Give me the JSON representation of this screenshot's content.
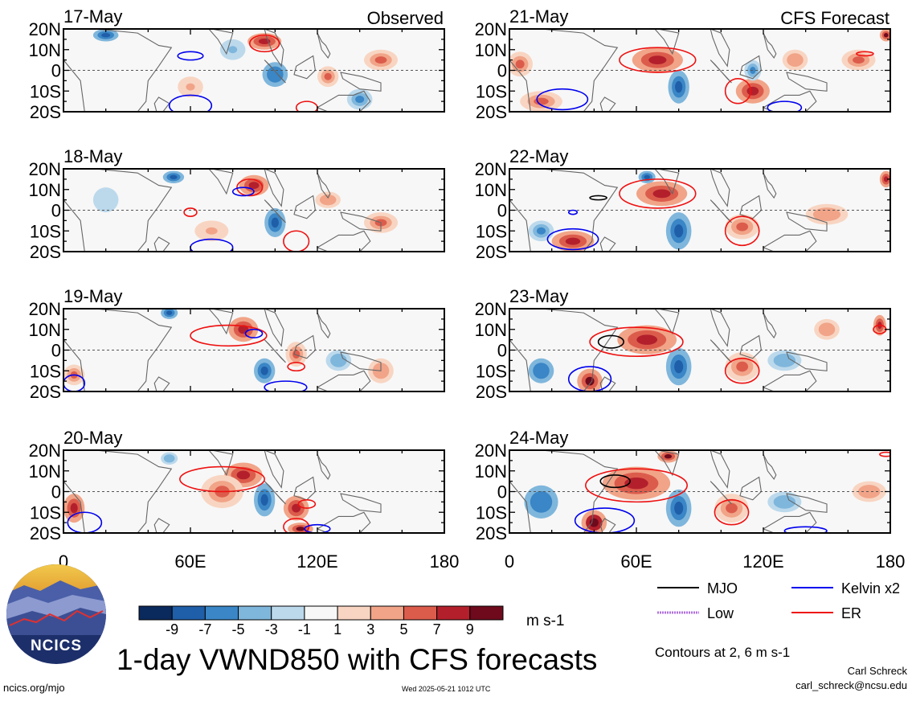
{
  "chart_data": {
    "type": "heatmap",
    "variable": "1-day VWND850 with CFS forecasts",
    "xlim": [
      0,
      180
    ],
    "ylim": [
      -20,
      20
    ],
    "x_ticks": [
      "0",
      "60E",
      "120E",
      "180"
    ],
    "y_ticks": [
      "20N",
      "10N",
      "0",
      "10S",
      "20S"
    ],
    "colorbar": {
      "labels": [
        "-9",
        "-7",
        "-5",
        "-3",
        "-1",
        "1",
        "3",
        "5",
        "7",
        "9"
      ],
      "colors": [
        "#0a2a5e",
        "#1f5ea8",
        "#3a86c6",
        "#7fb6dc",
        "#bcd9ec",
        "#f7f7f7",
        "#f8d5c2",
        "#f1a488",
        "#dc5c4c",
        "#b3202c",
        "#6e0a1c"
      ],
      "units": "m s-1"
    },
    "panels": [
      {
        "date": "17-May",
        "column": "left",
        "row": 0,
        "header_right": "Observed",
        "blobs": [
          [
            95,
            14,
            8,
            4,
            0.8
          ],
          [
            20,
            17,
            6,
            3,
            -0.9
          ],
          [
            100,
            -2,
            6,
            6,
            -0.7
          ],
          [
            125,
            -3,
            5,
            5,
            0.5
          ],
          [
            150,
            5,
            8,
            5,
            0.6
          ],
          [
            80,
            10,
            6,
            5,
            -0.4
          ],
          [
            60,
            -8,
            6,
            5,
            0.3
          ],
          [
            140,
            -14,
            6,
            5,
            -0.6
          ]
        ],
        "contours": [
          {
            "type": "ER",
            "x": 95,
            "y": 13,
            "rx": 7,
            "ry": 4
          },
          {
            "type": "Kelvin",
            "x": 60,
            "y": 7,
            "rx": 6,
            "ry": 2
          },
          {
            "type": "Kelvin",
            "x": 60,
            "y": -17,
            "rx": 10,
            "ry": 5
          },
          {
            "type": "ER",
            "x": 115,
            "y": -18,
            "rx": 5,
            "ry": 3
          }
        ]
      },
      {
        "date": "18-May",
        "column": "left",
        "row": 1,
        "header_right": "",
        "blobs": [
          [
            90,
            12,
            7,
            5,
            0.7
          ],
          [
            52,
            16,
            5,
            3,
            -0.8
          ],
          [
            100,
            -6,
            5,
            7,
            -0.8
          ],
          [
            125,
            5,
            6,
            4,
            0.4
          ],
          [
            150,
            -6,
            8,
            5,
            0.5
          ],
          [
            20,
            5,
            6,
            6,
            -0.3
          ],
          [
            70,
            -10,
            8,
            5,
            0.3
          ]
        ],
        "contours": [
          {
            "type": "ER",
            "x": 88,
            "y": 11,
            "rx": 6,
            "ry": 4
          },
          {
            "type": "Kelvin",
            "x": 85,
            "y": 9,
            "rx": 5,
            "ry": 2
          },
          {
            "type": "ER",
            "x": 60,
            "y": -1,
            "rx": 3,
            "ry": 2
          },
          {
            "type": "Kelvin",
            "x": 70,
            "y": -18,
            "rx": 10,
            "ry": 4
          },
          {
            "type": "ER",
            "x": 110,
            "y": -15,
            "rx": 6,
            "ry": 5
          }
        ]
      },
      {
        "date": "19-May",
        "column": "left",
        "row": 2,
        "header_right": "",
        "blobs": [
          [
            85,
            10,
            7,
            6,
            0.8
          ],
          [
            50,
            18,
            4,
            3,
            -0.8
          ],
          [
            95,
            -10,
            5,
            6,
            -0.8
          ],
          [
            110,
            -2,
            5,
            6,
            0.5
          ],
          [
            130,
            -5,
            6,
            5,
            -0.5
          ],
          [
            5,
            -12,
            5,
            5,
            0.6
          ],
          [
            150,
            -10,
            6,
            6,
            0.4
          ]
        ],
        "contours": [
          {
            "type": "ER",
            "x": 78,
            "y": 7,
            "rx": 18,
            "ry": 5
          },
          {
            "type": "Kelvin",
            "x": 90,
            "y": 8,
            "rx": 4,
            "ry": 2
          },
          {
            "type": "ER",
            "x": 110,
            "y": -8,
            "rx": 4,
            "ry": 2
          },
          {
            "type": "Kelvin",
            "x": 105,
            "y": -18,
            "rx": 10,
            "ry": 3
          },
          {
            "type": "Kelvin",
            "x": 5,
            "y": -16,
            "rx": 5,
            "ry": 4
          }
        ]
      },
      {
        "date": "20-May",
        "column": "left",
        "row": 3,
        "header_right": "",
        "blobs": [
          [
            85,
            8,
            9,
            6,
            0.8
          ],
          [
            95,
            -4,
            5,
            8,
            -0.9
          ],
          [
            110,
            -8,
            6,
            6,
            0.7
          ],
          [
            112,
            -18,
            6,
            3,
            0.9
          ],
          [
            5,
            -8,
            5,
            7,
            0.8
          ],
          [
            75,
            0,
            10,
            8,
            0.5
          ],
          [
            50,
            16,
            4,
            3,
            -0.5
          ]
        ],
        "contours": [
          {
            "type": "ER",
            "x": 75,
            "y": 6,
            "rx": 20,
            "ry": 6
          },
          {
            "type": "Kelvin",
            "x": 10,
            "y": -15,
            "rx": 8,
            "ry": 5
          },
          {
            "type": "ER",
            "x": 110,
            "y": -17,
            "rx": 6,
            "ry": 4
          },
          {
            "type": "Kelvin",
            "x": 120,
            "y": -18,
            "rx": 6,
            "ry": 2
          },
          {
            "type": "ER",
            "x": 115,
            "y": -6,
            "rx": 4,
            "ry": 2
          }
        ]
      },
      {
        "date": "21-May",
        "column": "right",
        "row": 0,
        "header_right": "CFS Forecast",
        "blobs": [
          [
            70,
            5,
            12,
            6,
            0.7
          ],
          [
            80,
            -8,
            5,
            8,
            -0.9
          ],
          [
            115,
            -10,
            8,
            6,
            0.7
          ],
          [
            115,
            0,
            4,
            5,
            -0.6
          ],
          [
            135,
            5,
            6,
            5,
            0.4
          ],
          [
            165,
            5,
            8,
            5,
            0.5
          ],
          [
            178,
            17,
            3,
            3,
            0.9
          ],
          [
            15,
            -15,
            10,
            5,
            0.6
          ],
          [
            5,
            3,
            6,
            6,
            0.5
          ]
        ],
        "contours": [
          {
            "type": "ER",
            "x": 70,
            "y": 5,
            "rx": 18,
            "ry": 6
          },
          {
            "type": "Kelvin",
            "x": 25,
            "y": -14,
            "rx": 12,
            "ry": 5
          },
          {
            "type": "ER",
            "x": 108,
            "y": -10,
            "rx": 6,
            "ry": 6
          },
          {
            "type": "Kelvin",
            "x": 130,
            "y": -18,
            "rx": 8,
            "ry": 3
          },
          {
            "type": "ER",
            "x": 168,
            "y": 8,
            "rx": 4,
            "ry": 1
          }
        ]
      },
      {
        "date": "22-May",
        "column": "right",
        "row": 1,
        "header_right": "",
        "blobs": [
          [
            72,
            8,
            12,
            6,
            0.8
          ],
          [
            80,
            -10,
            6,
            9,
            -0.9
          ],
          [
            110,
            -8,
            8,
            6,
            0.6
          ],
          [
            30,
            -15,
            10,
            5,
            0.7
          ],
          [
            15,
            -10,
            6,
            5,
            -0.6
          ],
          [
            65,
            16,
            4,
            3,
            -0.8
          ],
          [
            178,
            15,
            3,
            4,
            0.8
          ],
          [
            150,
            -2,
            10,
            5,
            0.4
          ]
        ],
        "contours": [
          {
            "type": "ER",
            "x": 70,
            "y": 8,
            "rx": 18,
            "ry": 7
          },
          {
            "type": "Kelvin",
            "x": 30,
            "y": -14,
            "rx": 12,
            "ry": 5
          },
          {
            "type": "ER",
            "x": 110,
            "y": -10,
            "rx": 8,
            "ry": 7
          },
          {
            "type": "MJO",
            "x": 42,
            "y": 6,
            "rx": 4,
            "ry": 1
          },
          {
            "type": "Kelvin",
            "x": 30,
            "y": -1,
            "rx": 2,
            "ry": 1
          }
        ]
      },
      {
        "date": "23-May",
        "column": "right",
        "row": 2,
        "header_right": "",
        "blobs": [
          [
            65,
            5,
            14,
            7,
            0.8
          ],
          [
            80,
            -8,
            6,
            9,
            -0.8
          ],
          [
            110,
            -8,
            8,
            7,
            0.6
          ],
          [
            38,
            -15,
            6,
            6,
            0.9
          ],
          [
            15,
            -10,
            6,
            6,
            -0.7
          ],
          [
            175,
            12,
            3,
            5,
            0.8
          ],
          [
            130,
            -5,
            8,
            5,
            -0.5
          ],
          [
            150,
            10,
            6,
            5,
            0.4
          ]
        ],
        "contours": [
          {
            "type": "ER",
            "x": 60,
            "y": 4,
            "rx": 22,
            "ry": 7
          },
          {
            "type": "MJO",
            "x": 48,
            "y": 4,
            "rx": 6,
            "ry": 3
          },
          {
            "type": "Kelvin",
            "x": 38,
            "y": -14,
            "rx": 10,
            "ry": 6
          },
          {
            "type": "ER",
            "x": 110,
            "y": -10,
            "rx": 8,
            "ry": 6
          },
          {
            "type": "ER",
            "x": 175,
            "y": 10,
            "rx": 3,
            "ry": 2
          }
        ]
      },
      {
        "date": "24-May",
        "column": "right",
        "row": 3,
        "header_right": "",
        "blobs": [
          [
            60,
            4,
            16,
            8,
            0.85
          ],
          [
            80,
            -8,
            6,
            9,
            -0.8
          ],
          [
            105,
            -8,
            8,
            7,
            0.6
          ],
          [
            40,
            -15,
            6,
            6,
            0.95
          ],
          [
            15,
            -5,
            8,
            8,
            -0.7
          ],
          [
            75,
            17,
            5,
            3,
            0.9
          ],
          [
            130,
            -5,
            8,
            5,
            -0.5
          ],
          [
            170,
            0,
            8,
            5,
            0.4
          ]
        ],
        "contours": [
          {
            "type": "ER",
            "x": 60,
            "y": 3,
            "rx": 24,
            "ry": 8
          },
          {
            "type": "MJO",
            "x": 50,
            "y": 5,
            "rx": 7,
            "ry": 3
          },
          {
            "type": "Kelvin",
            "x": 45,
            "y": -14,
            "rx": 14,
            "ry": 6
          },
          {
            "type": "ER",
            "x": 105,
            "y": -10,
            "rx": 8,
            "ry": 6
          },
          {
            "type": "Kelvin",
            "x": 140,
            "y": -19,
            "rx": 10,
            "ry": 2
          },
          {
            "type": "ER",
            "x": 178,
            "y": 18,
            "rx": 3,
            "ry": 1
          }
        ]
      }
    ]
  },
  "legend": {
    "items": [
      {
        "label": "MJO",
        "color": "#000000"
      },
      {
        "label": "Kelvin x2",
        "color": "#0000ee"
      },
      {
        "label": "Low",
        "color": "#b070e0"
      },
      {
        "label": "ER",
        "color": "#ee1111"
      }
    ]
  },
  "title": "1-day VWND850 with CFS forecasts",
  "units": "m s-1",
  "contour_note": "Contours at 2, 6 m s-1",
  "logo_text": "NCICS",
  "footer": {
    "url": "ncics.org/mjo",
    "timestamp": "Wed 2025-05-21 1012 UTC",
    "author": "Carl Schreck",
    "email": "carl_schreck@ncsu.edu"
  }
}
